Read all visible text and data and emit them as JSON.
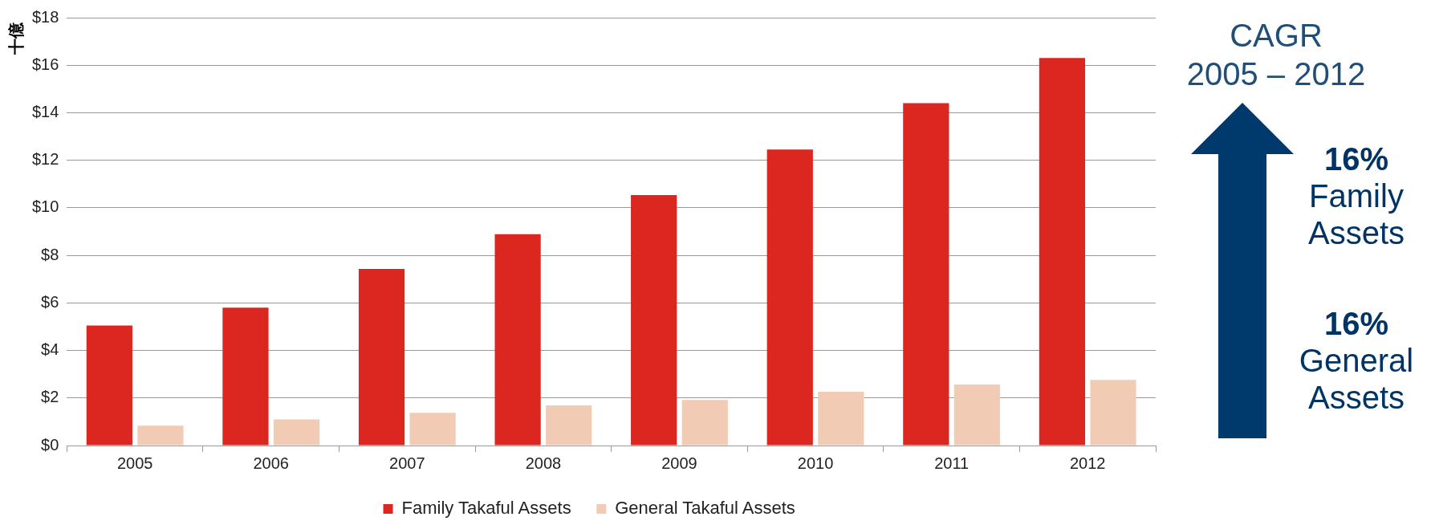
{
  "chart_data": {
    "type": "bar",
    "ylabel": "十億",
    "categories": [
      "2005",
      "2006",
      "2007",
      "2008",
      "2009",
      "2010",
      "2011",
      "2012"
    ],
    "series": [
      {
        "name": "Family Takaful Assets",
        "color": "#dc2620",
        "values": [
          5.05,
          5.8,
          7.43,
          8.89,
          10.54,
          12.45,
          14.4,
          16.3
        ]
      },
      {
        "name": "General Takaful Assets",
        "color": "#f2cbb5",
        "values": [
          0.84,
          1.1,
          1.38,
          1.69,
          1.92,
          2.26,
          2.57,
          2.76
        ]
      }
    ],
    "ylim": [
      0,
      18
    ],
    "yticks": [
      {
        "value": 0,
        "label": "$0"
      },
      {
        "value": 2,
        "label": "$2"
      },
      {
        "value": 4,
        "label": "$4"
      },
      {
        "value": 6,
        "label": "$6"
      },
      {
        "value": 8,
        "label": "$8"
      },
      {
        "value": 10,
        "label": "$10"
      },
      {
        "value": 12,
        "label": "$12"
      },
      {
        "value": 14,
        "label": "$14"
      },
      {
        "value": 16,
        "label": "$16"
      },
      {
        "value": 18,
        "label": "$18"
      }
    ],
    "grid": "y",
    "legend": "bottom",
    "annotations": [
      "CAGR\n2005 – 2012",
      "16%\nFamily\nAssets",
      "16%\nGeneral\nAssets"
    ]
  }
}
